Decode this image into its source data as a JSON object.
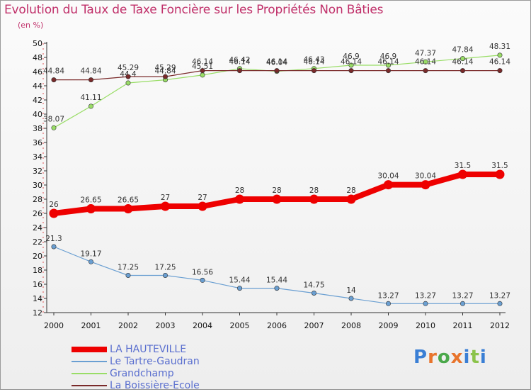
{
  "title": "Evolution du Taux de Taxe Foncière sur les Propriétés Non Bâties",
  "unit_label": "(en %)",
  "logo": {
    "text": "Proxiti",
    "letters": [
      "P",
      "r",
      "o",
      "x",
      "i",
      "t",
      "i"
    ],
    "colors": [
      "#3a7fd5",
      "#e8742c",
      "#4aa84a",
      "#e8742c",
      "#3a7fd5",
      "#8bc34a",
      "#3a7fd5"
    ]
  },
  "chart_data": {
    "type": "line",
    "title": "Evolution du Taux de Taxe Foncière sur les Propriétés Non Bâties",
    "ylabel": "(en %)",
    "xlabel": "",
    "x": [
      "2000",
      "2001",
      "2002",
      "2003",
      "2004",
      "2005",
      "2006",
      "2007",
      "2008",
      "2009",
      "2010",
      "2011",
      "2012"
    ],
    "ylim": [
      12,
      50
    ],
    "yticks": [
      12,
      14,
      16,
      18,
      20,
      22,
      24,
      26,
      28,
      30,
      32,
      34,
      36,
      38,
      40,
      42,
      44,
      46,
      48,
      50
    ],
    "grid": false,
    "legend_position": "bottom-left",
    "series": [
      {
        "name": "LA HAUTEVILLE",
        "color": "#ee0000",
        "width": 8,
        "values": [
          26,
          26.65,
          26.65,
          27,
          27,
          28,
          28,
          28,
          28,
          30.04,
          30.04,
          31.5,
          31.5
        ],
        "labels": [
          "26",
          "26.65",
          "26.65",
          "27",
          "27",
          "28",
          "28",
          "28",
          "28",
          "30.04",
          "30.04",
          "31.5",
          "31.5"
        ]
      },
      {
        "name": "Le Tartre-Gaudran",
        "color": "#6a9fd2",
        "width": 1.2,
        "values": [
          21.3,
          19.17,
          17.25,
          17.25,
          16.56,
          15.44,
          15.44,
          14.75,
          14,
          13.27,
          13.27,
          13.27,
          13.27
        ],
        "labels": [
          "21.3",
          "19.17",
          "17.25",
          "17.25",
          "16.56",
          "15.44",
          "15.44",
          "14.75",
          "14",
          "13.27",
          "13.27",
          "13.27",
          "13.27"
        ]
      },
      {
        "name": "Grandchamp",
        "color": "#99dd66",
        "width": 1.2,
        "values": [
          38.07,
          41.11,
          44.4,
          44.84,
          45.51,
          46.42,
          46.04,
          46.43,
          46.9,
          46.9,
          47.37,
          47.84,
          48.31
        ],
        "labels": [
          "38.07",
          "41.11",
          "44.4",
          "44.84",
          "45.51",
          "46.42",
          "46.04",
          "46.43",
          "46.9",
          "46.9",
          "47.37",
          "47.84",
          "48.31"
        ]
      },
      {
        "name": "La Boissière-Ecole",
        "color": "#7a2a2a",
        "width": 1.2,
        "values": [
          44.84,
          44.84,
          45.29,
          45.29,
          46.14,
          46.14,
          46.14,
          46.14,
          46.14,
          46.14,
          46.14,
          46.14,
          46.14
        ],
        "labels": [
          "44.84",
          "44.84",
          "45.29",
          "45.29",
          "46.14",
          "46.14",
          "46.14",
          "46.14",
          "46.14",
          "46.14",
          "46.14",
          "46.14",
          "46.14"
        ]
      }
    ]
  }
}
